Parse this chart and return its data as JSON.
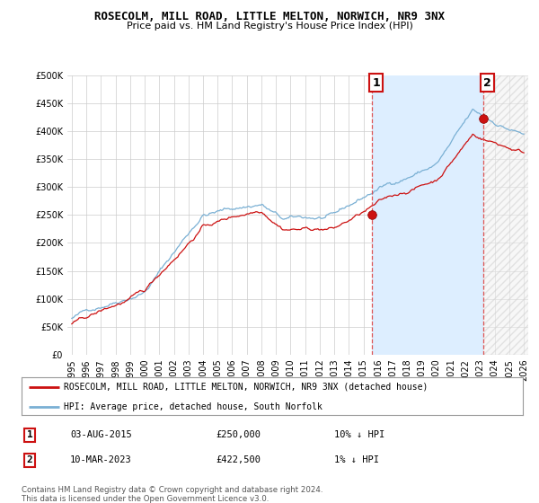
{
  "title": "ROSECOLM, MILL ROAD, LITTLE MELTON, NORWICH, NR9 3NX",
  "subtitle": "Price paid vs. HM Land Registry's House Price Index (HPI)",
  "legend_line1": "ROSECOLM, MILL ROAD, LITTLE MELTON, NORWICH, NR9 3NX (detached house)",
  "legend_line2": "HPI: Average price, detached house, South Norfolk",
  "annotation1_label": "1",
  "annotation1_date": "03-AUG-2015",
  "annotation1_price": "£250,000",
  "annotation1_hpi": "10% ↓ HPI",
  "annotation2_label": "2",
  "annotation2_date": "10-MAR-2023",
  "annotation2_price": "£422,500",
  "annotation2_hpi": "1% ↓ HPI",
  "footer": "Contains HM Land Registry data © Crown copyright and database right 2024.\nThis data is licensed under the Open Government Licence v3.0.",
  "hpi_color": "#7ab0d4",
  "price_color": "#cc1111",
  "vline_color": "#dd4444",
  "grid_color": "#cccccc",
  "bg_color": "#ffffff",
  "shade_color": "#ddeeff",
  "ylim": [
    0,
    500000
  ],
  "yticks": [
    0,
    50000,
    100000,
    150000,
    200000,
    250000,
    300000,
    350000,
    400000,
    450000,
    500000
  ],
  "sale1_x": 2015.58,
  "sale1_y": 250000,
  "sale2_x": 2023.19,
  "sale2_y": 422500,
  "xmin": 1995,
  "xmax": 2026
}
